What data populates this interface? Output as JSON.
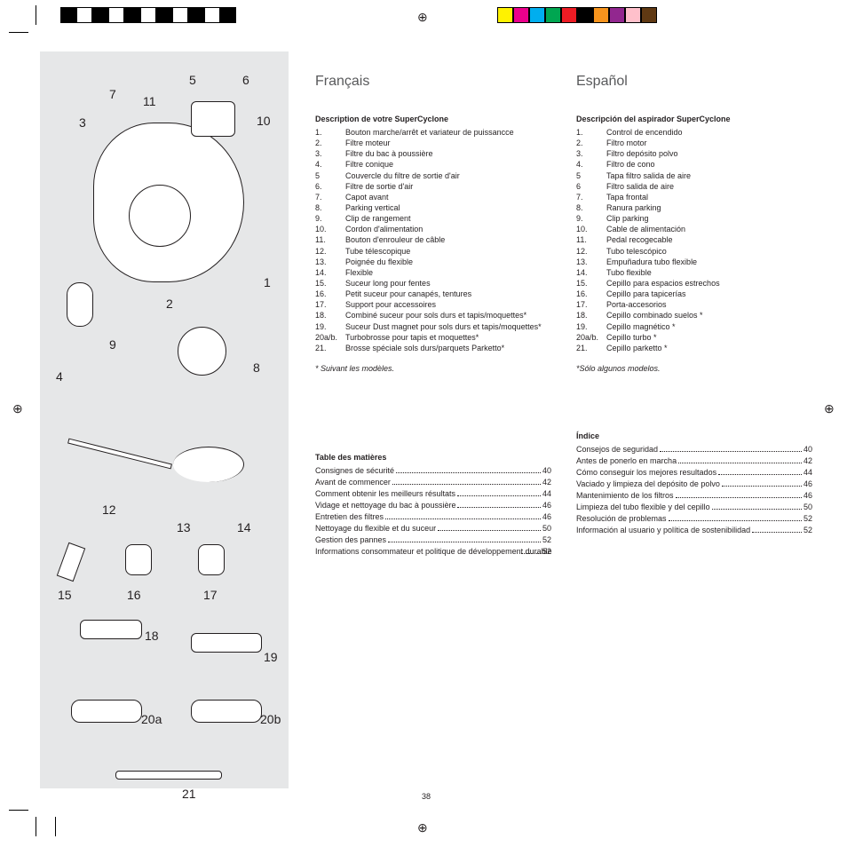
{
  "page_number": "38",
  "colorbar_left": [
    "#000000",
    "#ffffff",
    "#000000",
    "#ffffff",
    "#000000",
    "#ffffff",
    "#000000",
    "#ffffff",
    "#000000",
    "#ffffff",
    "#000000"
  ],
  "colorbar_right": [
    "#fff200",
    "#ec008c",
    "#00aeef",
    "#00a651",
    "#ed1c24",
    "#000000",
    "#f7941d",
    "#92278f",
    "#ffc0cb",
    "#603913"
  ],
  "diagram_labels": {
    "l1": "1",
    "l2": "2",
    "l3": "3",
    "l4": "4",
    "l5": "5",
    "l6": "6",
    "l7": "7",
    "l8": "8",
    "l9": "9",
    "l10": "10",
    "l11": "11",
    "l12": "12",
    "l13": "13",
    "l14": "14",
    "l15": "15",
    "l16": "16",
    "l17": "17",
    "l18": "18",
    "l19": "19",
    "l20a": "20a",
    "l20b": "20b",
    "l21": "21"
  },
  "fr": {
    "heading": "Français",
    "desc_title": "Description de votre SuperCyclone",
    "items": [
      {
        "n": "1.",
        "t": "Bouton marche/arrêt et variateur de puissancce"
      },
      {
        "n": "2.",
        "t": "Filtre moteur"
      },
      {
        "n": "3.",
        "t": "Filtre du bac à poussière"
      },
      {
        "n": "4.",
        "t": "Filtre conique"
      },
      {
        "n": "5",
        "t": "Couvercle du filtre de sortie d'air"
      },
      {
        "n": "6.",
        "t": "Filtre de sortie d'air"
      },
      {
        "n": "7.",
        "t": "Capot avant"
      },
      {
        "n": "8.",
        "t": "Parking vertical"
      },
      {
        "n": "9.",
        "t": "Clip de rangement"
      },
      {
        "n": "10.",
        "t": "Cordon d'alimentation"
      },
      {
        "n": "11.",
        "t": "Bouton d'enrouleur de câble"
      },
      {
        "n": "12.",
        "t": "Tube télescopique"
      },
      {
        "n": "13.",
        "t": "Poignée du flexible"
      },
      {
        "n": "14.",
        "t": "Flexible"
      },
      {
        "n": "15.",
        "t": "Suceur long pour fentes"
      },
      {
        "n": "16.",
        "t": "Petit suceur pour canapés, tentures"
      },
      {
        "n": "17.",
        "t": "Support pour accessoires"
      },
      {
        "n": "18.",
        "t": "Combiné suceur pour sols durs et tapis/moquettes*"
      },
      {
        "n": "19.",
        "t": "Suceur Dust magnet pour sols durs et tapis/moquettes*"
      },
      {
        "n": "20a/b.",
        "t": "Turbobrosse pour tapis et moquettes*"
      },
      {
        "n": "21.",
        "t": "Brosse spéciale sols durs/parquets Parketto*"
      }
    ],
    "footnote": "* Suivant les modèles.",
    "toc_title": "Table des matières",
    "toc": [
      {
        "t": "Consignes de sécurité",
        "p": "40"
      },
      {
        "t": "Avant de commencer",
        "p": "42"
      },
      {
        "t": "Comment obtenir les meilleurs résultats",
        "p": "44"
      },
      {
        "t": "Vidage et nettoyage du bac à poussière",
        "p": "46"
      },
      {
        "t": "Entretien des filtres",
        "p": "46"
      },
      {
        "t": "Nettoyage du flexible et du suceur",
        "p": "50"
      },
      {
        "t": "Gestion des pannes",
        "p": "52"
      },
      {
        "t": "Informations consommateur et politique de développement durable",
        "p": "52",
        "wrap": true
      }
    ]
  },
  "es": {
    "heading": "Español",
    "desc_title": "Descripción del aspirador SuperCyclone",
    "items": [
      {
        "n": "1.",
        "t": "Control de encendido"
      },
      {
        "n": "2.",
        "t": "Filtro motor"
      },
      {
        "n": "3.",
        "t": "Filtro depósito polvo"
      },
      {
        "n": "4.",
        "t": "Filtro de cono"
      },
      {
        "n": "5",
        "t": "Tapa filtro salida de aire"
      },
      {
        "n": "6",
        "t": "Filtro salida de aire"
      },
      {
        "n": "7.",
        "t": "Tapa frontal"
      },
      {
        "n": "8.",
        "t": "Ranura parking"
      },
      {
        "n": "9.",
        "t": "Clip parking"
      },
      {
        "n": "10.",
        "t": "Cable de alimentación"
      },
      {
        "n": "11.",
        "t": "Pedal recogecable"
      },
      {
        "n": "12.",
        "t": "Tubo telescópico"
      },
      {
        "n": "13.",
        "t": "Empuñadura tubo flexible"
      },
      {
        "n": "14.",
        "t": "Tubo flexible"
      },
      {
        "n": "15.",
        "t": "Cepillo para espacios estrechos"
      },
      {
        "n": "16.",
        "t": "Cepillo para tapicerías"
      },
      {
        "n": "17.",
        "t": "Porta-accesorios"
      },
      {
        "n": "18.",
        "t": "Cepillo combinado suelos *"
      },
      {
        "n": "19.",
        "t": "Cepillo magnético *"
      },
      {
        "n": "20a/b.",
        "t": "Cepillo turbo *"
      },
      {
        "n": "21.",
        "t": "Cepillo parketto *"
      }
    ],
    "footnote": "*Sólo algunos modelos.",
    "toc_title": "Índice",
    "toc": [
      {
        "t": "Consejos de seguridad",
        "p": "40"
      },
      {
        "t": "Antes de ponerlo en marcha",
        "p": "42"
      },
      {
        "t": "Cómo conseguir los mejores resultados",
        "p": "44"
      },
      {
        "t": "Vaciado y limpieza del depósito de polvo",
        "p": "46"
      },
      {
        "t": "Mantenimiento de los filtros",
        "p": "46"
      },
      {
        "t": "Limpieza del tubo flexible y del cepillo",
        "p": "50"
      },
      {
        "t": "Resolución de problemas",
        "p": "52"
      },
      {
        "t": "Información al usuario y política de sostenibilidad",
        "p": "52"
      }
    ]
  }
}
